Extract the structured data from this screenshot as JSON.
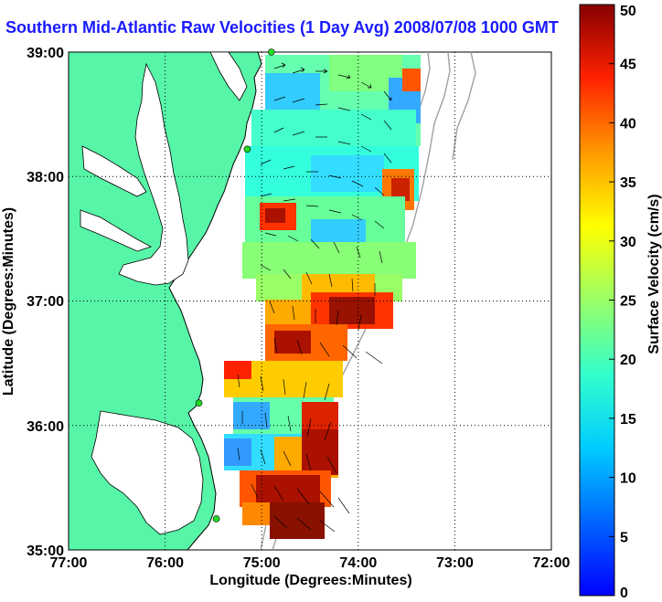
{
  "title": "Southern Mid-Atlantic Raw Velocities (1 Day Avg) 2008/07/08 1000 GMT",
  "xlabel": "Longitude (Degrees:Minutes)",
  "ylabel": "Latitude (Degrees:Minutes)",
  "x_ticks": [
    "77:00",
    "76:00",
    "75:00",
    "74:00",
    "73:00",
    "72:00"
  ],
  "y_ticks": [
    "39:00",
    "38:00",
    "37:00",
    "36:00",
    "35:00"
  ],
  "colorbar": {
    "label": "Surface Velocity (cm/s)",
    "ticks": [
      "0",
      "5",
      "10",
      "15",
      "20",
      "25",
      "30",
      "35",
      "40",
      "45",
      "50"
    ],
    "min": 0,
    "max": 50
  },
  "colors": {
    "land": "#57f5a8",
    "coast": "#000000",
    "title": "#1a1aff",
    "bathymetry": "#a0a0a0",
    "station": "#22dd22"
  },
  "map": {
    "lon_range": [
      -77,
      -72
    ],
    "lat_range": [
      35,
      39
    ]
  },
  "stations": [
    {
      "lon": -74.9,
      "lat": 39.0
    },
    {
      "lon": -75.15,
      "lat": 38.22
    },
    {
      "lon": -75.65,
      "lat": 36.18
    },
    {
      "lon": -75.47,
      "lat": 35.25
    }
  ]
}
